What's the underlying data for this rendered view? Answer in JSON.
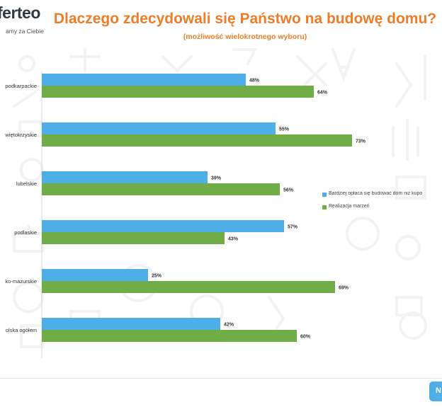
{
  "header": {
    "logo_name": "ferteo",
    "logo_tagline": "amy za Ciebie",
    "title": "Dlaczego zdecydowali się Państwo na budowę domu?",
    "subtitle": "(możliwość wielokrotnego wyboru)"
  },
  "footer": {
    "badge": "N"
  },
  "colors": {
    "series1": "#4daee8",
    "series2": "#70ad47",
    "title": "#f07d28"
  },
  "chart_data": {
    "type": "bar",
    "orientation": "horizontal",
    "categories": [
      "podkarpackie",
      "więtokrzyskie",
      "lubelskie",
      "podlaskie",
      "ko-mazurskie",
      "olska ogółem"
    ],
    "series": [
      {
        "name": "Bardziej opłaca się budować dom niż kupo",
        "values": [
          48,
          55,
          39,
          57,
          25,
          42
        ]
      },
      {
        "name": "Realizacja marzeń",
        "values": [
          64,
          73,
          56,
          43,
          69,
          60
        ]
      }
    ],
    "value_labels": [
      [
        "48%",
        "55%",
        "39%",
        "57%",
        "25%",
        "42%"
      ],
      [
        "64%",
        "73%",
        "56%",
        "43%",
        "69%",
        "60%"
      ]
    ],
    "value_unit": "%",
    "xlim": [
      0,
      100
    ],
    "grid": false,
    "legend_position": "right",
    "title": "Dlaczego zdecydowali się Państwo na budowę domu?",
    "xlabel": "",
    "ylabel": ""
  }
}
